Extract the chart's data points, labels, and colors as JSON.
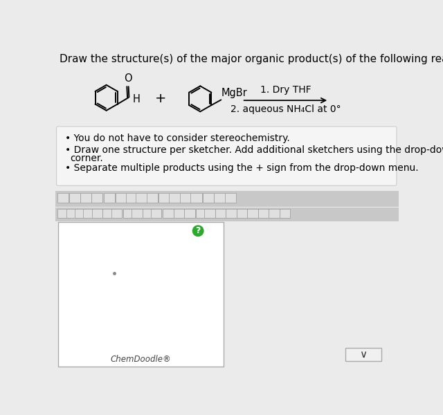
{
  "title": "Draw the structure(s) of the major organic product(s) of the following reaction.",
  "title_fontsize": 11,
  "bg_color": "#ebebeb",
  "bullet_section_bg": "#f5f5f5",
  "bullet_section_border": "#cccccc",
  "bullet_points_line1": "You do not have to consider stereochemistry.",
  "bullet_points_line2": "Draw one structure per sketcher. Add additional sketchers using the drop-down",
  "bullet_points_line2b": "corner.",
  "bullet_points_line3": "Separate multiple products using the + sign from the drop-down menu.",
  "bullet_fontsize": 10,
  "conditions_line1": "1. Dry THF",
  "conditions_line2": "2. aqueous NH₄Cl at 0°",
  "conditions_fontsize": 10,
  "chemdoodle_label": "ChemDoodle®",
  "sketcher_bg": "#ffffff",
  "green_btn_color": "#2ea82e",
  "toolbar_bg": "#cccccc",
  "plus_sign": "+",
  "mgbr_label": "MgBr",
  "h_label": "H",
  "o_label": "O"
}
